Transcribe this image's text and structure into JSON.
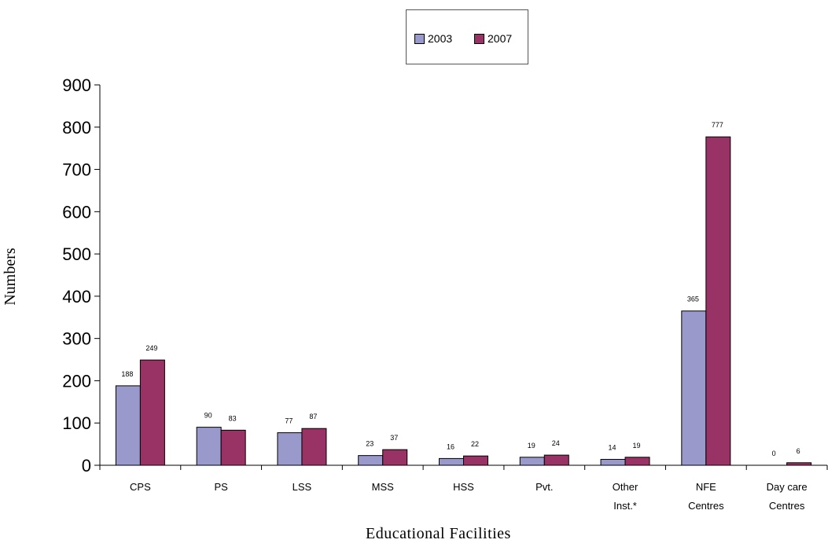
{
  "chart_data": {
    "type": "bar",
    "xlabel": "Educational Facilities",
    "ylabel": "Numbers",
    "ylim": [
      0,
      900
    ],
    "yticks": [
      0,
      100,
      200,
      300,
      400,
      500,
      600,
      700,
      800,
      900
    ],
    "grid": false,
    "legend_position": "top-center",
    "categories": [
      [
        "CPS"
      ],
      [
        "PS"
      ],
      [
        "LSS"
      ],
      [
        "MSS"
      ],
      [
        "HSS"
      ],
      [
        "Pvt."
      ],
      [
        "Other",
        "Inst.*"
      ],
      [
        "NFE",
        "Centres"
      ],
      [
        "Day care",
        "Centres"
      ]
    ],
    "series": [
      {
        "name": "2003",
        "color": "#9999cc",
        "values": [
          188,
          90,
          77,
          23,
          16,
          19,
          14,
          365,
          0
        ],
        "labels": [
          "188",
          "90",
          "77",
          "23",
          "16",
          "19",
          "14",
          "365",
          "0"
        ]
      },
      {
        "name": "2007",
        "color": "#993366",
        "values": [
          249,
          83,
          87,
          37,
          22,
          24,
          19,
          777,
          6
        ],
        "labels": [
          "249",
          "83",
          "87",
          "37",
          "22",
          "24",
          "19",
          "777",
          "6"
        ]
      }
    ]
  }
}
